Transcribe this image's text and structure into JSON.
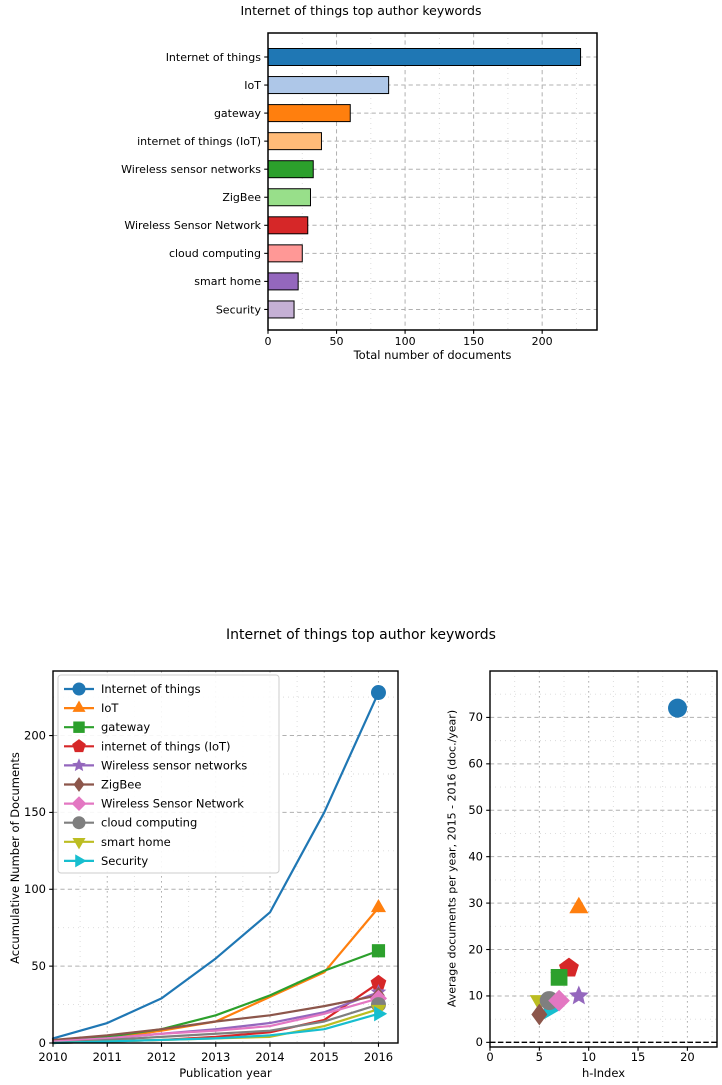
{
  "titles": {
    "top": "Internet of things top author keywords",
    "bottom": "Internet of things top author keywords"
  },
  "chart_data": [
    {
      "type": "bar",
      "orientation": "horizontal",
      "title": "Internet of things top author keywords",
      "xlabel": "Total number of documents",
      "categories": [
        "Internet of things",
        "IoT",
        "gateway",
        "internet of things (IoT)",
        "Wireless sensor networks",
        "ZigBee",
        "Wireless Sensor Network",
        "cloud computing",
        "smart home",
        "Security"
      ],
      "values": [
        228,
        88,
        60,
        39,
        33,
        31,
        29,
        25,
        22,
        19
      ],
      "bar_colors": [
        "#1f77b4",
        "#aec7e8",
        "#ff7f0e",
        "#ffbb78",
        "#2ca02c",
        "#98df8a",
        "#d62728",
        "#ff9896",
        "#9467bd",
        "#c5b0d5"
      ],
      "xlim": [
        0,
        240
      ],
      "xticks": [
        0,
        50,
        100,
        150,
        200
      ],
      "grid": true
    },
    {
      "type": "line",
      "title": "Internet of things top author keywords",
      "xlabel": "Publication year",
      "ylabel": "Accumulative Number of Documents",
      "x": [
        2010,
        2011,
        2012,
        2013,
        2014,
        2015,
        2016
      ],
      "series": [
        {
          "name": "Internet of things",
          "color": "#1f77b4",
          "marker": "circle",
          "values": [
            3,
            13,
            29,
            55,
            85,
            150,
            228
          ]
        },
        {
          "name": "IoT",
          "color": "#ff7f0e",
          "marker": "triangle-up",
          "values": [
            1,
            3,
            8,
            14,
            30,
            46,
            88
          ]
        },
        {
          "name": "gateway",
          "color": "#2ca02c",
          "marker": "square",
          "values": [
            1,
            4,
            9,
            18,
            31,
            47,
            60
          ]
        },
        {
          "name": "internet of things (IoT)",
          "color": "#d62728",
          "marker": "pentagon",
          "values": [
            0,
            1,
            2,
            4,
            7,
            15,
            39
          ]
        },
        {
          "name": "Wireless sensor networks",
          "color": "#9467bd",
          "marker": "star",
          "values": [
            1,
            3,
            6,
            9,
            13,
            20,
            33
          ]
        },
        {
          "name": "ZigBee",
          "color": "#8c564b",
          "marker": "thin-diamond",
          "values": [
            2,
            5,
            9,
            14,
            18,
            24,
            31
          ]
        },
        {
          "name": "Wireless Sensor Network",
          "color": "#e377c2",
          "marker": "diamond",
          "values": [
            1,
            3,
            6,
            8,
            11,
            19,
            29
          ]
        },
        {
          "name": "cloud computing",
          "color": "#7f7f7f",
          "marker": "circle",
          "values": [
            0,
            2,
            4,
            6,
            8,
            14,
            25
          ]
        },
        {
          "name": "smart home",
          "color": "#bcbd22",
          "marker": "triangle-down",
          "values": [
            0,
            1,
            2,
            3,
            4,
            11,
            22
          ]
        },
        {
          "name": "Security",
          "color": "#17becf",
          "marker": "triangle-right",
          "values": [
            0,
            1,
            2,
            3,
            5,
            9,
            19
          ]
        }
      ],
      "xlim": [
        2010,
        2016.36
      ],
      "ylim": [
        0,
        242
      ],
      "xticks": [
        2010,
        2011,
        2012,
        2013,
        2014,
        2015,
        2016
      ],
      "yticks": [
        0,
        50,
        100,
        150,
        200
      ],
      "legend_position": "upper left",
      "grid": true
    },
    {
      "type": "scatter",
      "title": "Internet of things top author keywords",
      "xlabel": "h-Index",
      "ylabel": "Average documents per year, 2015 - 2016 (doc./year)",
      "points": [
        {
          "name": "Internet of things",
          "color": "#1f77b4",
          "marker": "circle",
          "x": 19,
          "y": 72
        },
        {
          "name": "IoT",
          "color": "#ff7f0e",
          "marker": "triangle-up",
          "x": 9,
          "y": 29
        },
        {
          "name": "gateway",
          "color": "#2ca02c",
          "marker": "square",
          "x": 7,
          "y": 14
        },
        {
          "name": "internet of things (IoT)",
          "color": "#d62728",
          "marker": "pentagon",
          "x": 8,
          "y": 16
        },
        {
          "name": "Wireless sensor networks",
          "color": "#9467bd",
          "marker": "star",
          "x": 9,
          "y": 10
        },
        {
          "name": "ZigBee",
          "color": "#8c564b",
          "marker": "thin-diamond",
          "x": 5,
          "y": 6
        },
        {
          "name": "Wireless Sensor Network",
          "color": "#e377c2",
          "marker": "diamond",
          "x": 7,
          "y": 9
        },
        {
          "name": "cloud computing",
          "color": "#7f7f7f",
          "marker": "circle",
          "x": 6,
          "y": 9
        },
        {
          "name": "smart home",
          "color": "#bcbd22",
          "marker": "triangle-down",
          "x": 5,
          "y": 9
        },
        {
          "name": "Security",
          "color": "#17becf",
          "marker": "triangle-right",
          "x": 6,
          "y": 7
        }
      ],
      "xlim": [
        0,
        23
      ],
      "ylim": [
        -1,
        80
      ],
      "xticks": [
        0,
        5,
        10,
        15,
        20
      ],
      "yticks": [
        0,
        10,
        20,
        30,
        40,
        50,
        60,
        70
      ],
      "zero_line": true,
      "grid": true
    }
  ]
}
